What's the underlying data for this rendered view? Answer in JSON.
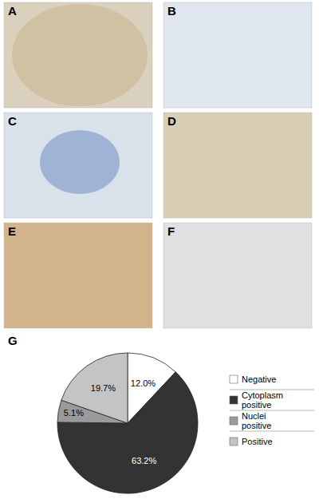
{
  "panel_labels": [
    "A",
    "B",
    "C",
    "D",
    "E",
    "F"
  ],
  "chart_label": "G",
  "chart_data": {
    "type": "pie",
    "categories": [
      "Negative",
      "Cytoplasm positive",
      "Nuclei positive",
      "Positive"
    ],
    "values": [
      12.0,
      63.2,
      5.1,
      19.7
    ],
    "value_labels": [
      "12.0%",
      "63.2%",
      "5.1%",
      "19.7%"
    ],
    "colors": [
      "#ffffff",
      "#333333",
      "#9a9a9a",
      "#c4c4c4"
    ],
    "data_labels": true,
    "legend": "right"
  }
}
